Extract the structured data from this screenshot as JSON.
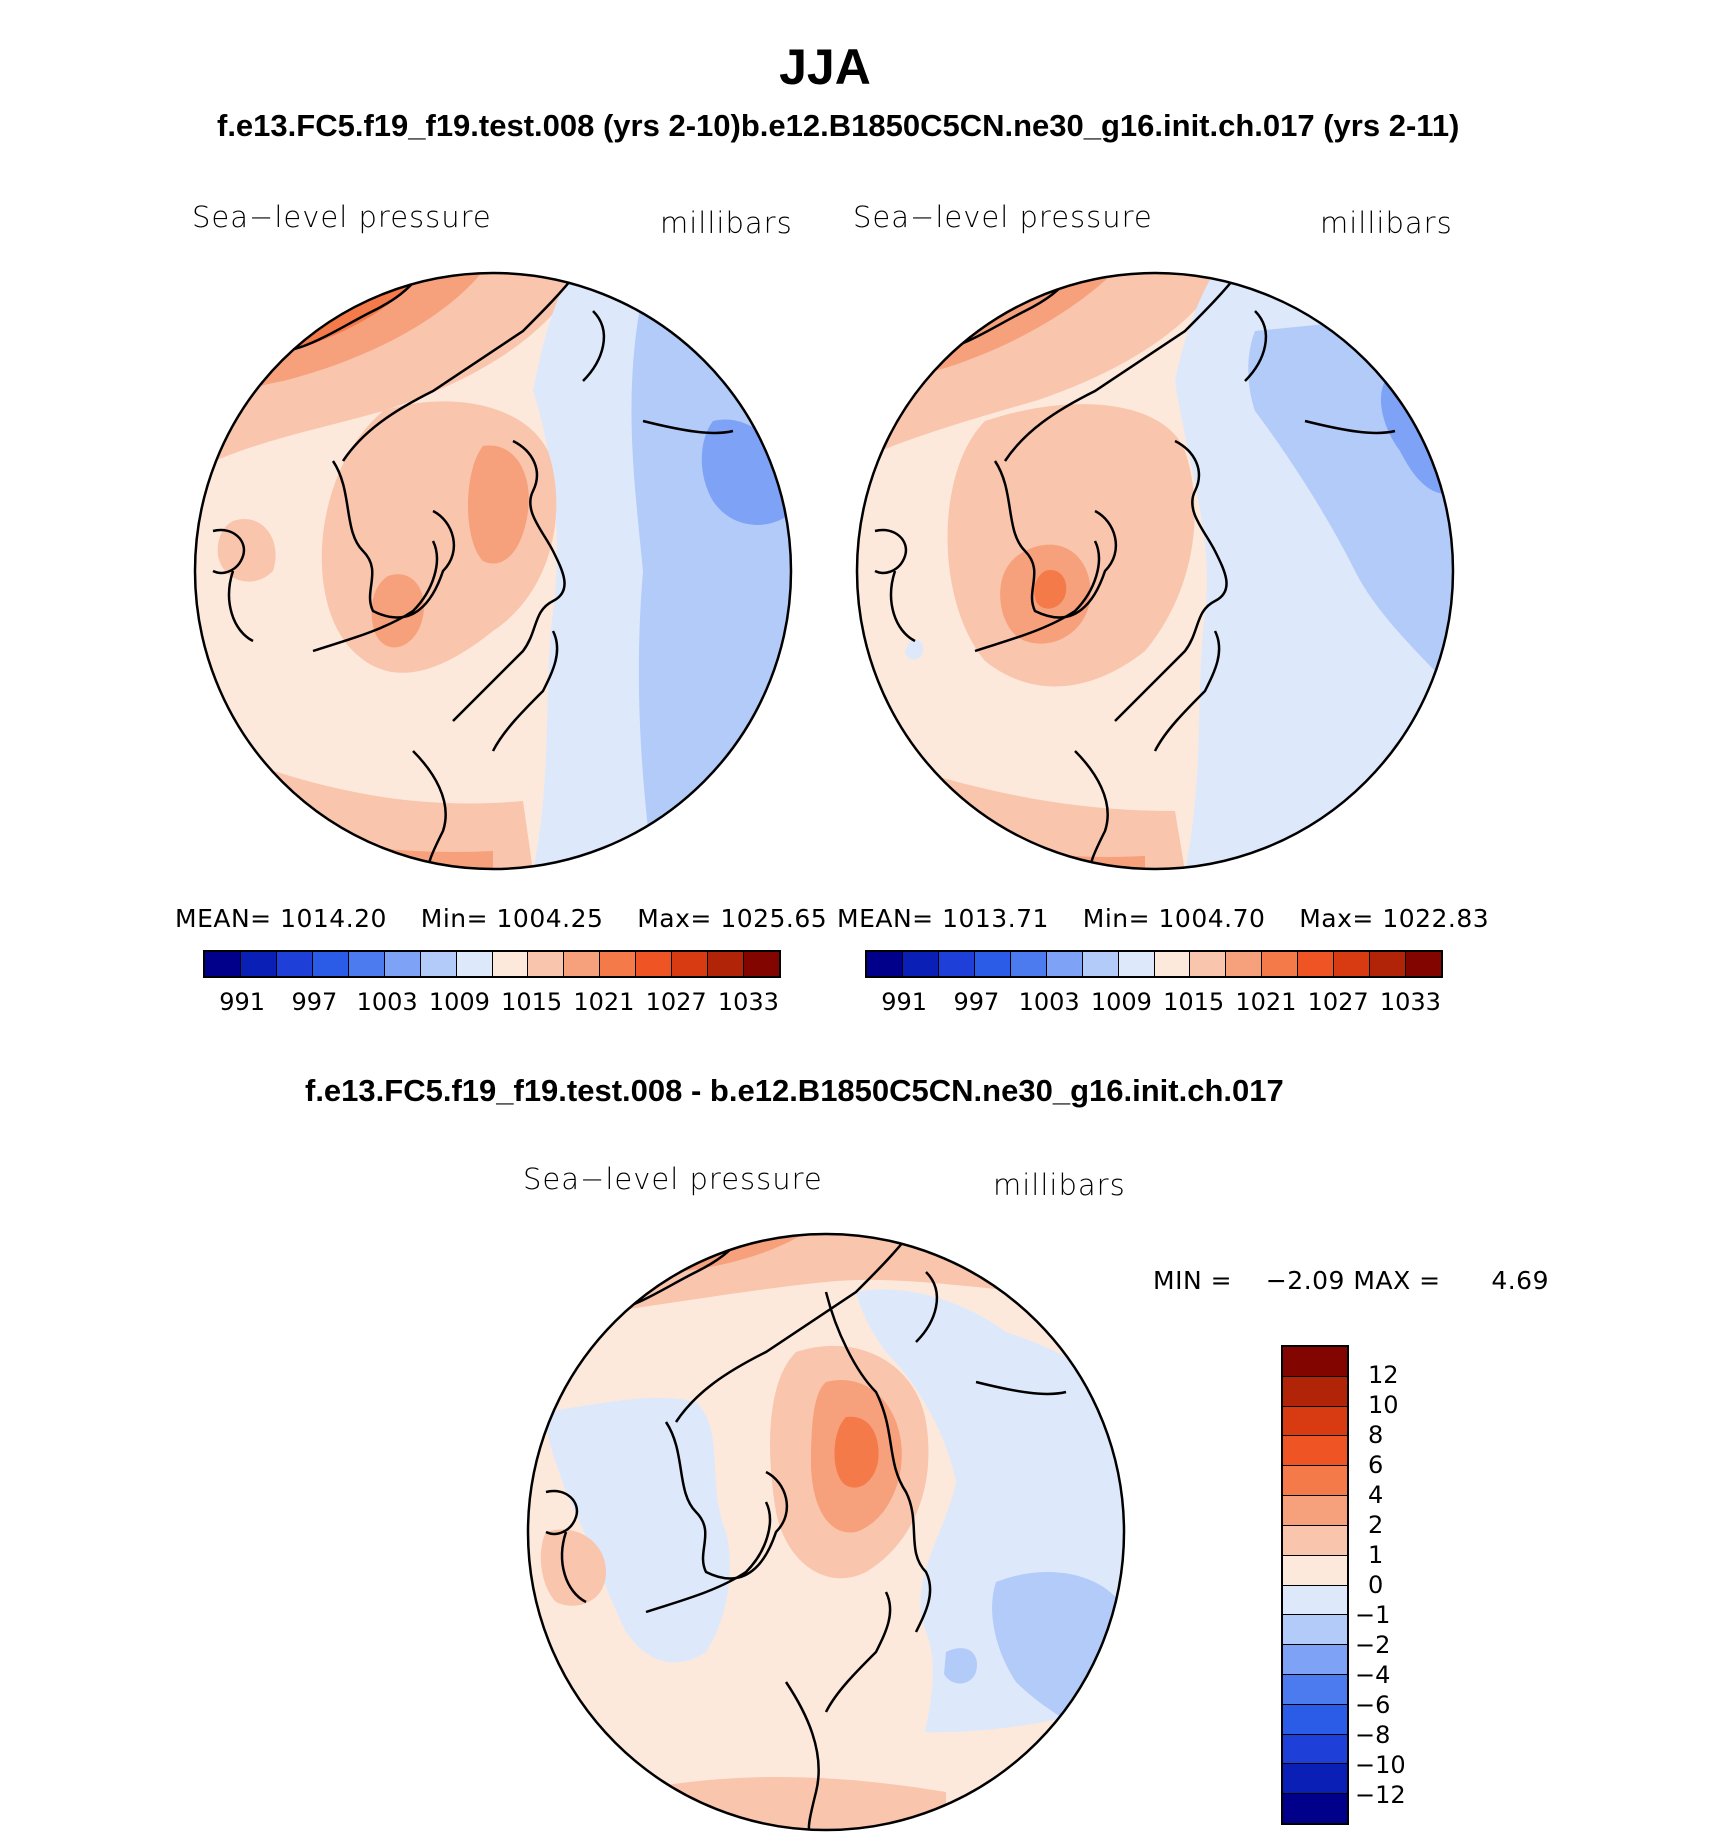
{
  "title": "JJA",
  "subtitle_top": "f.e13.FC5.f19_f19.test.008 (yrs 2-10)b.e12.B1850C5CN.ne30_g16.init.ch.017 (yrs 2-11)",
  "subtitle_diff": "f.e13.FC5.f19_f19.test.008 - b.e12.B1850C5CN.ne30_g16.init.ch.017",
  "panels": {
    "left": {
      "variable": "Sea−level pressure",
      "units": "millibars",
      "stats": {
        "mean_label": "MEAN=",
        "mean": "1014.20",
        "min_label": "Min=",
        "min": "1004.25",
        "max_label": "Max=",
        "max": "1025.65"
      }
    },
    "right": {
      "variable": "Sea−level pressure",
      "units": "millibars",
      "stats": {
        "mean_label": "MEAN=",
        "mean": "1013.71",
        "min_label": "Min=",
        "min": "1004.70",
        "max_label": "Max=",
        "max": "1022.83"
      }
    },
    "diff": {
      "variable": "Sea−level pressure",
      "units": "millibars",
      "minmax": {
        "min_label": "MIN =",
        "min": "−2.09",
        "max_label": "MAX =",
        "max": "4.69"
      }
    }
  },
  "colorbar_abs": {
    "ticks": [
      "991",
      "997",
      "1003",
      "1009",
      "1015",
      "1021",
      "1027",
      "1033"
    ],
    "colors": [
      "#00008b",
      "#0a1fb5",
      "#1e3fd8",
      "#2b5ce8",
      "#4b7bef",
      "#7ea2f5",
      "#b3cbf9",
      "#dde9fb",
      "#fde9dc",
      "#f9c5ad",
      "#f6a07c",
      "#f47a4a",
      "#ef5424",
      "#d83b12",
      "#b12408",
      "#830500"
    ]
  },
  "colorbar_diff": {
    "ticks_top_to_bottom": [
      "12",
      "10",
      "8",
      "6",
      "4",
      "2",
      "1",
      "0",
      "−1",
      "−2",
      "−4",
      "−6",
      "−8",
      "−10",
      "−12"
    ],
    "colors_top_to_bottom": [
      "#830500",
      "#b12408",
      "#d83b12",
      "#ef5424",
      "#f47a4a",
      "#f6a07c",
      "#f9c5ad",
      "#fde9dc",
      "#dde9fb",
      "#b3cbf9",
      "#7ea2f5",
      "#4b7bef",
      "#2b5ce8",
      "#1e3fd8",
      "#0a1fb5",
      "#00008b"
    ]
  },
  "palette": {
    "pale_peach": "#fde9dc",
    "light_salmon": "#f9c5ad",
    "salmon": "#f6a07c",
    "orange": "#f47a4a",
    "deep_orange": "#ef5424",
    "pale_blue": "#dde9fb",
    "light_blue": "#b3cbf9",
    "mid_blue": "#7ea2f5"
  }
}
